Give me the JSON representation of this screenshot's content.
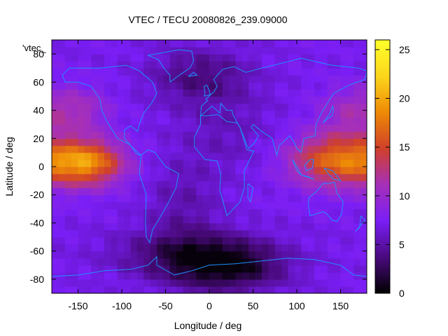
{
  "chart_data": {
    "type": "heatmap",
    "title": "VTEC / TECU 20080826_239.09000",
    "xlabel": "Longitude / deg",
    "ylabel": "Latitude / deg",
    "xlim": [
      -180,
      180
    ],
    "ylim": [
      -90,
      90
    ],
    "x_ticks": [
      -150,
      -100,
      -50,
      0,
      50,
      100,
      150
    ],
    "y_ticks": [
      -80,
      -60,
      -40,
      -20,
      0,
      20,
      40,
      60,
      80
    ],
    "colorbar": {
      "range": [
        0,
        26
      ],
      "ticks": [
        0,
        5,
        10,
        15,
        20,
        25
      ],
      "palette": [
        "#000000",
        "#4a0a7e",
        "#7a1ef6",
        "#a630b8",
        "#d0402a",
        "#ee8a06",
        "#fcd61c",
        "#ffff2a"
      ]
    },
    "legend": "'vtec_",
    "overlay": "continent outlines",
    "overlay_color": "#1e90ff",
    "features": [
      {
        "lon": -140,
        "lat": 3,
        "vtec": 18
      },
      {
        "lon": 140,
        "lat": 5,
        "vtec": 17
      },
      {
        "lon": 30,
        "lat": -70,
        "vtec": 1
      },
      {
        "lon": 0,
        "lat": 65,
        "vtec": 3
      },
      {
        "lon": 0,
        "lat": 0,
        "vtec": 7
      }
    ]
  }
}
